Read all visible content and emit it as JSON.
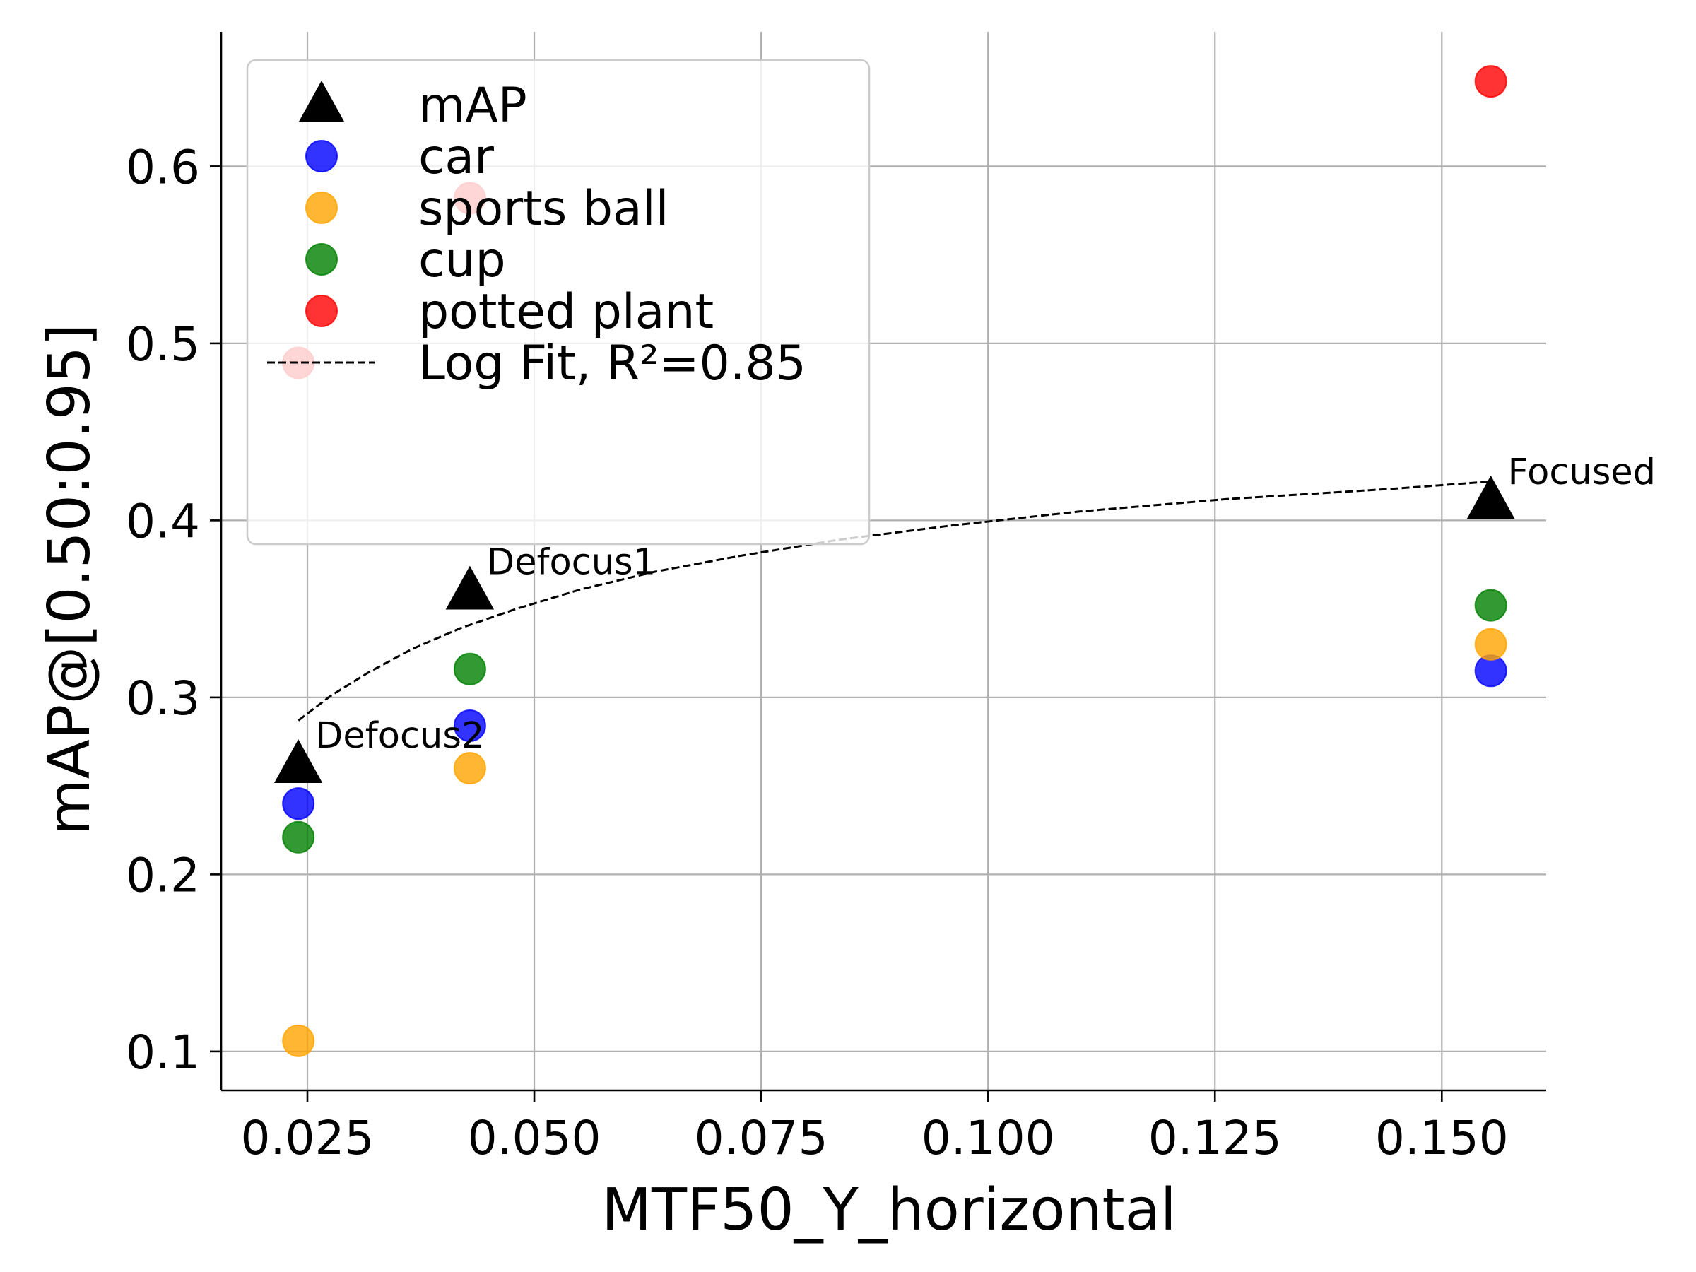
{
  "chart_data": {
    "type": "scatter",
    "xlabel": "MTF50_Y_horizontal",
    "ylabel": "mAP@[0.50:0.95]",
    "xlim": [
      0.0155,
      0.1615
    ],
    "ylim": [
      0.078,
      0.676
    ],
    "xticks": [
      0.025,
      0.05,
      0.075,
      0.1,
      0.125,
      0.15
    ],
    "xtick_labels": [
      "0.025",
      "0.050",
      "0.075",
      "0.100",
      "0.125",
      "0.150"
    ],
    "yticks": [
      0.1,
      0.2,
      0.3,
      0.4,
      0.5,
      0.6
    ],
    "ytick_labels": [
      "0.1",
      "0.2",
      "0.3",
      "0.4",
      "0.5",
      "0.6"
    ],
    "grid": true,
    "legend_position": "top-left",
    "series": [
      {
        "name": "mAP",
        "marker": "triangle",
        "color": "#000000",
        "x": [
          0.024,
          0.0429,
          0.1554
        ],
        "y": [
          0.262,
          0.36,
          0.411
        ]
      },
      {
        "name": "car",
        "marker": "circle",
        "color": "#0000ff",
        "x": [
          0.024,
          0.0429,
          0.1554
        ],
        "y": [
          0.24,
          0.284,
          0.315
        ]
      },
      {
        "name": "sports ball",
        "marker": "circle",
        "color": "#ffa500",
        "x": [
          0.024,
          0.0429,
          0.1554
        ],
        "y": [
          0.106,
          0.26,
          0.33
        ]
      },
      {
        "name": "cup",
        "marker": "circle",
        "color": "#008000",
        "x": [
          0.024,
          0.0429,
          0.1554
        ],
        "y": [
          0.221,
          0.316,
          0.352
        ]
      },
      {
        "name": "potted plant",
        "marker": "circle",
        "color": "#ff0000",
        "x": [
          0.024,
          0.0429,
          0.1554
        ],
        "y": [
          0.489,
          0.582,
          0.648
        ]
      }
    ],
    "fit": {
      "name": "Log Fit, R²=0.85",
      "style": "dashed",
      "color": "#000000",
      "x": [
        0.024,
        0.0276,
        0.0317,
        0.0364,
        0.0418,
        0.048,
        0.0551,
        0.0633,
        0.0727,
        0.0835,
        0.0958,
        0.11,
        0.1263,
        0.145,
        0.1554
      ],
      "y": [
        0.287,
        0.301,
        0.314,
        0.327,
        0.339,
        0.35,
        0.361,
        0.371,
        0.38,
        0.389,
        0.397,
        0.405,
        0.412,
        0.418,
        0.422
      ]
    },
    "annotations": [
      {
        "text": "Defocus2",
        "x": 0.024,
        "y": 0.262
      },
      {
        "text": "Defocus1",
        "x": 0.0429,
        "y": 0.36
      },
      {
        "text": "Focused",
        "x": 0.1554,
        "y": 0.411
      }
    ]
  }
}
